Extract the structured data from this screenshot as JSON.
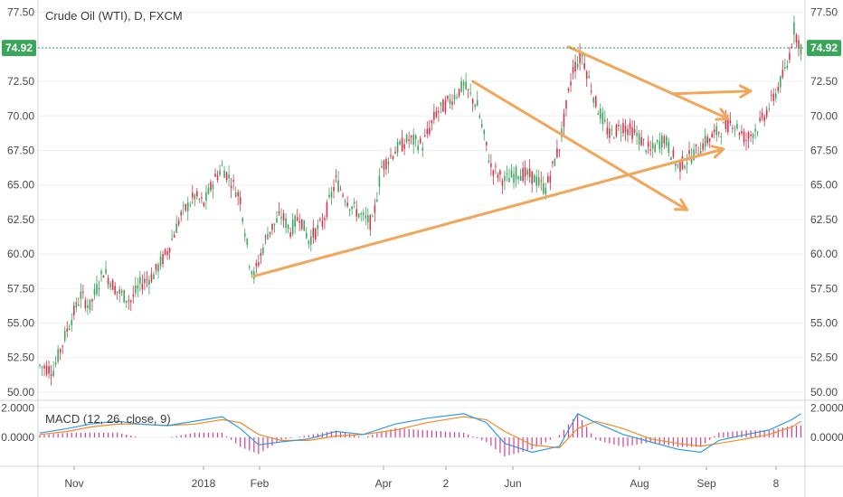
{
  "symbol": {
    "name": "Crude Oil (WTI), D, FXCM"
  },
  "macd": {
    "label": "MACD (12, 26, close, 9)"
  },
  "colors": {
    "up": "#3ba55c",
    "down": "#d2344a",
    "macd_line": "#2f9be0",
    "signal_line": "#f08a24",
    "histogram": "#d43f8d",
    "drawing": "#f2a65a",
    "price_tag": "#3ba55c",
    "grid": "#eef0f3"
  },
  "chart_data": {
    "type": "candlestick",
    "title": "Crude Oil (WTI), D, FXCM",
    "price_axis": {
      "ticks": [
        "77.50",
        "75.00",
        "72.50",
        "70.00",
        "67.50",
        "65.00",
        "62.50",
        "60.00",
        "57.50",
        "55.00",
        "52.50",
        "50.00"
      ],
      "range": [
        49.6,
        78.0
      ]
    },
    "macd_axis": {
      "ticks": [
        "2.0000",
        "0.0000"
      ]
    },
    "time_axis": {
      "labels": [
        "Nov",
        "2018",
        "Feb",
        "Apr",
        "2",
        "Jun",
        "Aug",
        "Sep",
        "8"
      ]
    },
    "last_price": "74.92",
    "close_path_points": [
      [
        0,
        51.9
      ],
      [
        6,
        51.6
      ],
      [
        12,
        54.5
      ],
      [
        18,
        57.0
      ],
      [
        22,
        56.2
      ],
      [
        28,
        58.8
      ],
      [
        34,
        57.3
      ],
      [
        40,
        56.6
      ],
      [
        44,
        57.8
      ],
      [
        50,
        58.5
      ],
      [
        56,
        60.2
      ],
      [
        62,
        62.8
      ],
      [
        68,
        64.2
      ],
      [
        72,
        63.6
      ],
      [
        76,
        65.2
      ],
      [
        80,
        66.3
      ],
      [
        84,
        65.3
      ],
      [
        88,
        64.0
      ],
      [
        92,
        59.5
      ],
      [
        94,
        58.4
      ],
      [
        100,
        61.5
      ],
      [
        106,
        62.8
      ],
      [
        110,
        61.7
      ],
      [
        114,
        62.8
      ],
      [
        118,
        61.0
      ],
      [
        124,
        62.2
      ],
      [
        130,
        65.3
      ],
      [
        136,
        63.6
      ],
      [
        142,
        62.6
      ],
      [
        146,
        62.2
      ],
      [
        150,
        66.3
      ],
      [
        156,
        67.5
      ],
      [
        162,
        68.3
      ],
      [
        168,
        67.9
      ],
      [
        174,
        70.2
      ],
      [
        180,
        71.1
      ],
      [
        186,
        72.2
      ],
      [
        192,
        70.7
      ],
      [
        198,
        66.3
      ],
      [
        204,
        65.3
      ],
      [
        210,
        65.9
      ],
      [
        216,
        65.6
      ],
      [
        222,
        64.7
      ],
      [
        228,
        67.8
      ],
      [
        234,
        73.4
      ],
      [
        238,
        74.4
      ],
      [
        244,
        70.9
      ],
      [
        250,
        68.6
      ],
      [
        256,
        69.3
      ],
      [
        262,
        68.6
      ],
      [
        268,
        67.4
      ],
      [
        274,
        68.4
      ],
      [
        280,
        66.3
      ],
      [
        286,
        67.1
      ],
      [
        292,
        68.1
      ],
      [
        298,
        68.9
      ],
      [
        304,
        69.6
      ],
      [
        310,
        68.3
      ],
      [
        316,
        69.4
      ],
      [
        322,
        71.3
      ],
      [
        328,
        73.6
      ],
      [
        331,
        76.3
      ],
      [
        334,
        74.92
      ]
    ],
    "macd_points": [
      [
        0,
        0.3
      ],
      [
        12,
        0.6
      ],
      [
        22,
        0.9
      ],
      [
        34,
        1.1
      ],
      [
        44,
        0.9
      ],
      [
        56,
        0.8
      ],
      [
        68,
        1.1
      ],
      [
        80,
        1.4
      ],
      [
        88,
        0.6
      ],
      [
        96,
        -0.5
      ],
      [
        106,
        -0.3
      ],
      [
        118,
        -0.1
      ],
      [
        130,
        0.4
      ],
      [
        142,
        0.2
      ],
      [
        156,
        0.9
      ],
      [
        170,
        1.3
      ],
      [
        186,
        1.6
      ],
      [
        196,
        1.0
      ],
      [
        204,
        -0.4
      ],
      [
        216,
        -1.0
      ],
      [
        228,
        -0.6
      ],
      [
        236,
        1.6
      ],
      [
        244,
        1.0
      ],
      [
        256,
        0.2
      ],
      [
        268,
        -0.3
      ],
      [
        280,
        -0.8
      ],
      [
        290,
        -1.0
      ],
      [
        298,
        -0.2
      ],
      [
        310,
        0.2
      ],
      [
        320,
        0.5
      ],
      [
        330,
        1.2
      ],
      [
        334,
        1.6
      ]
    ],
    "signal_points": [
      [
        0,
        0.2
      ],
      [
        12,
        0.4
      ],
      [
        22,
        0.7
      ],
      [
        34,
        0.9
      ],
      [
        44,
        0.9
      ],
      [
        56,
        0.8
      ],
      [
        68,
        0.9
      ],
      [
        80,
        1.2
      ],
      [
        88,
        1.0
      ],
      [
        96,
        0.2
      ],
      [
        106,
        -0.2
      ],
      [
        118,
        -0.2
      ],
      [
        130,
        0.1
      ],
      [
        142,
        0.2
      ],
      [
        156,
        0.5
      ],
      [
        170,
        1.0
      ],
      [
        186,
        1.4
      ],
      [
        196,
        1.2
      ],
      [
        204,
        0.4
      ],
      [
        216,
        -0.5
      ],
      [
        228,
        -0.7
      ],
      [
        236,
        0.6
      ],
      [
        244,
        1.1
      ],
      [
        256,
        0.6
      ],
      [
        268,
        -0.1
      ],
      [
        280,
        -0.4
      ],
      [
        290,
        -0.6
      ],
      [
        298,
        -0.4
      ],
      [
        310,
        -0.1
      ],
      [
        320,
        0.2
      ],
      [
        330,
        0.7
      ],
      [
        334,
        1.1
      ]
    ],
    "annotations": [
      {
        "from": [
          94,
          58.4
        ],
        "to": [
          300,
          67.6
        ],
        "arrow": true
      },
      {
        "from": [
          190,
          72.5
        ],
        "to": [
          284,
          63.2
        ],
        "arrow": true
      },
      {
        "from": [
          232,
          75.0
        ],
        "to": [
          302,
          69.8
        ],
        "arrow": true
      },
      {
        "from": [
          278,
          71.6
        ],
        "to": [
          312,
          71.8
        ],
        "arrow": true
      }
    ]
  }
}
